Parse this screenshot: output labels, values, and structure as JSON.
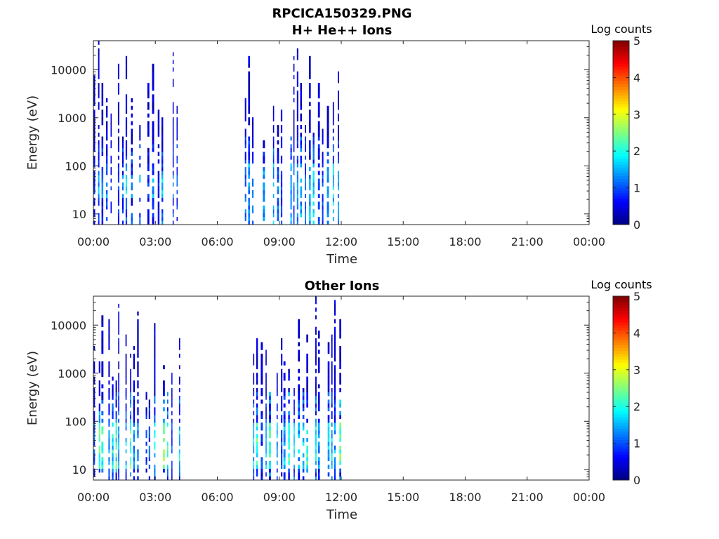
{
  "chart_data": [
    {
      "type": "heatmap",
      "figure_title": "RPCICA150329.PNG",
      "title": "H+ He++ Ions",
      "xlabel": "Time",
      "ylabel": "Energy (eV)",
      "x_range": [
        "00:00",
        "24:00"
      ],
      "x_ticks": [
        "00:00",
        "03:00",
        "06:00",
        "09:00",
        "12:00",
        "15:00",
        "18:00",
        "21:00",
        "00:00"
      ],
      "y_scale": "log",
      "ylim": [
        6,
        40000
      ],
      "y_ticks": [
        {
          "v": 10,
          "label": "10"
        },
        {
          "v": 100,
          "label": "100"
        },
        {
          "v": 1000,
          "label": "1000"
        },
        {
          "v": 10000,
          "label": "10000"
        }
      ],
      "colorbar": {
        "label": "Log counts",
        "range": [
          0,
          5
        ],
        "ticks": [
          "0",
          "1",
          "2",
          "3",
          "4",
          "5"
        ],
        "colormap": "jet"
      },
      "data_intervals": [
        {
          "start": "00:00",
          "end": "04:20",
          "max_energy_eV": 40000,
          "peak_log_counts": 2.0,
          "peak_energy_range_eV": [
            20,
            60
          ]
        },
        {
          "start": "07:20",
          "end": "11:50",
          "max_energy_eV": 40000,
          "peak_log_counts": 1.9,
          "peak_energy_range_eV": [
            6,
            100
          ]
        }
      ]
    },
    {
      "type": "heatmap",
      "title": "Other Ions",
      "xlabel": "Time",
      "ylabel": "Energy (eV)",
      "x_range": [
        "00:00",
        "24:00"
      ],
      "x_ticks": [
        "00:00",
        "03:00",
        "06:00",
        "09:00",
        "12:00",
        "15:00",
        "18:00",
        "21:00",
        "00:00"
      ],
      "y_scale": "log",
      "ylim": [
        6,
        40000
      ],
      "y_ticks": [
        {
          "v": 10,
          "label": "10"
        },
        {
          "v": 100,
          "label": "100"
        },
        {
          "v": 1000,
          "label": "1000"
        },
        {
          "v": 10000,
          "label": "10000"
        }
      ],
      "colorbar": {
        "label": "Log counts",
        "range": [
          0,
          5
        ],
        "ticks": [
          "0",
          "1",
          "2",
          "3",
          "4",
          "5"
        ],
        "colormap": "jet"
      },
      "data_intervals": [
        {
          "start": "00:00",
          "end": "04:20",
          "max_energy_eV": 40000,
          "peak_log_counts": 2.8,
          "peak_energy_range_eV": [
            10,
            90
          ]
        },
        {
          "start": "07:20",
          "end": "12:00",
          "max_energy_eV": 40000,
          "peak_log_counts": 2.9,
          "peak_energy_range_eV": [
            10,
            90
          ]
        }
      ]
    }
  ]
}
